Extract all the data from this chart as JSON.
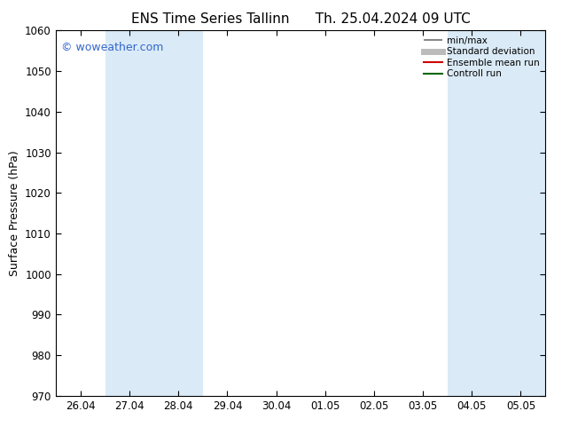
{
  "title_left": "ENS Time Series Tallinn",
  "title_right": "Th. 25.04.2024 09 UTC",
  "ylabel": "Surface Pressure (hPa)",
  "ylim": [
    970,
    1060
  ],
  "yticks": [
    970,
    980,
    990,
    1000,
    1010,
    1020,
    1030,
    1040,
    1050,
    1060
  ],
  "xtick_labels": [
    "26.04",
    "27.04",
    "28.04",
    "29.04",
    "30.04",
    "01.05",
    "02.05",
    "03.05",
    "04.05",
    "05.05"
  ],
  "xtick_positions": [
    0,
    1,
    2,
    3,
    4,
    5,
    6,
    7,
    8,
    9
  ],
  "xlim": [
    -0.5,
    9.5
  ],
  "shaded_bands": [
    {
      "xmin": 0.5,
      "xmax": 1.5,
      "color": "#daeaf7"
    },
    {
      "xmin": 1.5,
      "xmax": 2.5,
      "color": "#daeaf7"
    },
    {
      "xmin": 7.5,
      "xmax": 8.5,
      "color": "#daeaf7"
    },
    {
      "xmin": 8.5,
      "xmax": 9.5,
      "color": "#daeaf7"
    }
  ],
  "watermark": "© woweather.com",
  "watermark_color": "#3366cc",
  "legend_entries": [
    {
      "label": "min/max",
      "color": "#888888",
      "lw": 1.5
    },
    {
      "label": "Standard deviation",
      "color": "#bbbbbb",
      "lw": 5
    },
    {
      "label": "Ensemble mean run",
      "color": "#cc0000",
      "lw": 1.5
    },
    {
      "label": "Controll run",
      "color": "#006600",
      "lw": 1.5
    }
  ],
  "background_color": "#ffffff",
  "plot_bg_color": "#ffffff",
  "tick_fontsize": 8.5,
  "ylabel_fontsize": 9,
  "title_fontsize": 11,
  "legend_fontsize": 7.5
}
